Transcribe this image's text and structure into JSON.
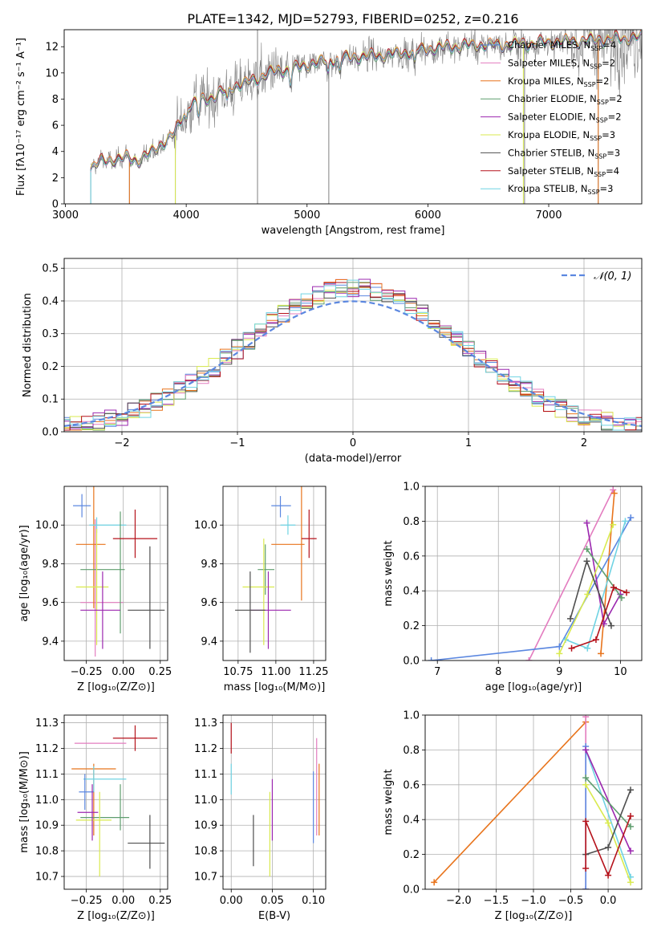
{
  "title": "PLATE=1342, MJD=52793, FIBERID=0252, z=0.216",
  "colors": {
    "orange": "#e8741c",
    "green": "#5f9e6e",
    "purple": "#9b27af",
    "yellow": "#d9ea4f",
    "dark": "#4f4f4f",
    "red": "#b5121b",
    "cyan": "#6fd3e3",
    "blue": "#5b87e0",
    "pink": "#e37cbf",
    "spectrum": "#808080"
  },
  "chart_data": [
    {
      "id": "spectrum",
      "type": "line",
      "xlabel": "wavelength [Angstrom, rest frame]",
      "ylabel": "Flux [fλ10⁻¹⁷ erg cm⁻² s⁻¹ A⁻¹]",
      "xlim": [
        2990,
        7770
      ],
      "ylim": [
        0,
        13.3
      ],
      "xticks": [
        3000,
        4000,
        5000,
        6000,
        7000
      ],
      "yticks": [
        0,
        2,
        4,
        6,
        8,
        10,
        12
      ],
      "grid": false,
      "legend_position": "top-right",
      "continuum_x": [
        3210,
        3300,
        3400,
        3500,
        3600,
        3700,
        3800,
        3900,
        3950,
        4000,
        4100,
        4200,
        4300,
        4400,
        4500,
        4600,
        4700,
        4800,
        4900,
        5000,
        5200,
        5400,
        5600,
        5800,
        6000,
        6200,
        6400,
        6600,
        6800,
        7000,
        7200,
        7400,
        7770
      ],
      "continuum_y": [
        2.8,
        3.2,
        3.4,
        3.5,
        3.3,
        3.8,
        4.6,
        5.3,
        6.2,
        7.4,
        7.8,
        8.1,
        8.5,
        9.0,
        9.2,
        9.6,
        10.0,
        10.2,
        10.3,
        10.6,
        11.0,
        11.2,
        11.3,
        11.5,
        11.8,
        12.0,
        12.1,
        12.1,
        12.2,
        12.3,
        12.4,
        12.5,
        12.7
      ],
      "series": [
        {
          "name": "Chabrier MILES, N_SSP=4",
          "color": "blue"
        },
        {
          "name": "Salpeter MILES, N_SSP=2",
          "color": "pink"
        },
        {
          "name": "Kroupa MILES, N_SSP=2",
          "color": "orange"
        },
        {
          "name": "Chabrier ELODIE, N_SSP=2",
          "color": "green"
        },
        {
          "name": "Salpeter ELODIE, N_SSP=2",
          "color": "purple"
        },
        {
          "name": "Kroupa ELODIE, N_SSP=3",
          "color": "yellow"
        },
        {
          "name": "Chabrier STELIB, N_SSP=3",
          "color": "dark"
        },
        {
          "name": "Salpeter STELIB, N_SSP=4",
          "color": "red"
        },
        {
          "name": "Kroupa STELIB, N_SSP=3",
          "color": "cyan"
        }
      ]
    },
    {
      "id": "residuals",
      "type": "line",
      "xlabel": "(data-model)/error",
      "ylabel": "Normed distribution",
      "xlim": [
        -2.5,
        2.5
      ],
      "ylim": [
        0,
        0.53
      ],
      "xticks": [
        -2,
        -1,
        0,
        1,
        2
      ],
      "xticklabels": [
        "−2",
        "−1",
        "0",
        "1",
        "2"
      ],
      "yticks": [
        0,
        0.1,
        0.2,
        0.3,
        0.4,
        0.5
      ],
      "yticklabels": [
        "0.0",
        "0.1",
        "0.2",
        "0.3",
        "0.4",
        "0.5"
      ],
      "grid": true,
      "gaussian_label": "𝒩(0, 1)",
      "bin_width": 0.1
    },
    {
      "id": "age_vs_Z",
      "type": "scatter",
      "xlabel": "Z [log₁₀(Z/Z⊙)]",
      "ylabel": "age  [log₁₀(age/yr)]",
      "xlim": [
        -0.4,
        0.3
      ],
      "ylim": [
        9.3,
        10.2
      ],
      "xticks": [
        -0.25,
        0.0,
        0.25
      ],
      "xticklabels": [
        "−0.25",
        "0.00",
        "0.25"
      ],
      "yticks": [
        9.4,
        9.6,
        9.8,
        10.0
      ],
      "yticklabels": [
        "9.4",
        "9.6",
        "9.8",
        "10.0"
      ],
      "grid": true,
      "points": [
        {
          "x": -0.28,
          "y": 10.1,
          "xe": [
            0.06,
            0.06
          ],
          "ye": [
            0.06,
            0.06
          ],
          "color": "blue"
        },
        {
          "x": -0.19,
          "y": 9.6,
          "xe": [
            0.1,
            0.19
          ],
          "ye": [
            0.28,
            0.43
          ],
          "color": "pink"
        },
        {
          "x": -0.2,
          "y": 9.9,
          "xe": [
            0.12,
            0.08
          ],
          "ye": [
            0.33,
            0.3
          ],
          "color": "orange"
        },
        {
          "x": -0.18,
          "y": 10.0,
          "xe": [
            0.05,
            0.2
          ],
          "ye": [
            0.04,
            0.04
          ],
          "color": "cyan"
        },
        {
          "x": -0.02,
          "y": 9.77,
          "xe": [
            0.27,
            0.03
          ],
          "ye": [
            0.33,
            0.3
          ],
          "color": "green"
        },
        {
          "x": -0.18,
          "y": 9.68,
          "xe": [
            0.14,
            0.08
          ],
          "ye": [
            0.3,
            0.3
          ],
          "color": "yellow"
        },
        {
          "x": -0.14,
          "y": 9.56,
          "xe": [
            0.15,
            0.12
          ],
          "ye": [
            0.2,
            0.2
          ],
          "color": "purple"
        },
        {
          "x": 0.08,
          "y": 9.93,
          "xe": [
            0.15,
            0.15
          ],
          "ye": [
            0.1,
            0.15
          ],
          "color": "red"
        },
        {
          "x": 0.18,
          "y": 9.56,
          "xe": [
            0.15,
            0.1
          ],
          "ye": [
            0.2,
            0.33
          ],
          "color": "dark"
        }
      ]
    },
    {
      "id": "age_vs_mass",
      "type": "scatter",
      "xlabel": "mass [log₁₀(M/M⊙)]",
      "xlim": [
        10.65,
        11.33
      ],
      "ylim": [
        9.3,
        10.2
      ],
      "xticks": [
        10.75,
        11.0,
        11.25
      ],
      "xticklabels": [
        "10.75",
        "11.00",
        "11.25"
      ],
      "yticks": [
        9.4,
        9.6,
        9.8,
        10.0
      ],
      "yticklabels": [
        "9.4",
        "9.6",
        "9.8",
        "10.0"
      ],
      "grid": true,
      "points": [
        {
          "x": 11.03,
          "y": 10.1,
          "xe": [
            0.06,
            0.07
          ],
          "ye": [
            0.06,
            0.05
          ],
          "color": "blue"
        },
        {
          "x": 11.08,
          "y": 10.0,
          "xe": [
            0.05,
            0.05
          ],
          "ye": [
            0.05,
            0.05
          ],
          "color": "cyan"
        },
        {
          "x": 11.17,
          "y": 9.9,
          "xe": [
            0.2,
            0.02
          ],
          "ye": [
            0.29,
            0.3
          ],
          "color": "orange"
        },
        {
          "x": 11.22,
          "y": 9.93,
          "xe": [
            0.05,
            0.05
          ],
          "ye": [
            0.1,
            0.15
          ],
          "color": "red"
        },
        {
          "x": 10.93,
          "y": 9.77,
          "xe": [
            0.05,
            0.06
          ],
          "ye": [
            0.13,
            0.13
          ],
          "color": "green"
        },
        {
          "x": 10.92,
          "y": 9.68,
          "xe": [
            0.14,
            0.07
          ],
          "ye": [
            0.3,
            0.25
          ],
          "color": "yellow"
        },
        {
          "x": 10.95,
          "y": 9.56,
          "xe": [
            0.12,
            0.15
          ],
          "ye": [
            0.2,
            0.2
          ],
          "color": "purple"
        },
        {
          "x": 10.83,
          "y": 9.56,
          "xe": [
            0.1,
            0.1
          ],
          "ye": [
            0.22,
            0.2
          ],
          "color": "dark"
        }
      ]
    },
    {
      "id": "weight_vs_age",
      "type": "line",
      "xlabel": "age  [log₁₀(age/yr)]",
      "ylabel": "mass weight",
      "xlim": [
        6.8,
        10.35
      ],
      "ylim": [
        0,
        1.0
      ],
      "xticks": [
        7,
        8,
        9,
        10
      ],
      "xticklabels": [
        "7",
        "8",
        "9",
        "10"
      ],
      "yticks": [
        0,
        0.2,
        0.4,
        0.6,
        0.8,
        1.0
      ],
      "yticklabels": [
        "0.0",
        "0.2",
        "0.4",
        "0.6",
        "0.8",
        "1.0"
      ],
      "grid": true,
      "series": [
        {
          "color": "pink",
          "x": [
            8.5,
            9.88
          ],
          "y": [
            0.0,
            0.98
          ]
        },
        {
          "color": "orange",
          "x": [
            9.68,
            9.9
          ],
          "y": [
            0.04,
            0.96
          ]
        },
        {
          "color": "blue",
          "x": [
            6.9,
            9.0,
            10.17
          ],
          "y": [
            0.0,
            0.08,
            0.82
          ]
        },
        {
          "color": "cyan",
          "x": [
            9.1,
            9.46,
            10.08
          ],
          "y": [
            0.12,
            0.07,
            0.8
          ]
        },
        {
          "color": "purple",
          "x": [
            9.45,
            9.73,
            10.0
          ],
          "y": [
            0.79,
            0.21,
            0.38
          ]
        },
        {
          "color": "green",
          "x": [
            9.45,
            10.02
          ],
          "y": [
            0.64,
            0.36
          ]
        },
        {
          "color": "yellow",
          "x": [
            9.0,
            9.46,
            9.88
          ],
          "y": [
            0.04,
            0.38,
            0.78
          ]
        },
        {
          "color": "dark",
          "x": [
            9.18,
            9.45,
            9.85
          ],
          "y": [
            0.24,
            0.57,
            0.2
          ]
        },
        {
          "color": "red",
          "x": [
            9.2,
            9.6,
            9.89,
            10.1
          ],
          "y": [
            0.07,
            0.12,
            0.42,
            0.39
          ]
        }
      ]
    },
    {
      "id": "mass_vs_Z",
      "type": "scatter",
      "xlabel": "Z [log₁₀(Z/Z⊙)]",
      "ylabel": "mass [log₁₀(M/M⊙)]",
      "xlim": [
        -0.4,
        0.3
      ],
      "ylim": [
        10.65,
        11.33
      ],
      "xticks": [
        -0.25,
        0.0,
        0.25
      ],
      "xticklabels": [
        "−0.25",
        "0.00",
        "0.25"
      ],
      "yticks": [
        10.7,
        10.8,
        10.9,
        11.0,
        11.1,
        11.2,
        11.3
      ],
      "yticklabels": [
        "10.7",
        "10.8",
        "10.9",
        "11.0",
        "11.1",
        "11.2",
        "11.3"
      ],
      "grid": true,
      "points": [
        {
          "x": 0.08,
          "y": 11.24,
          "xe": [
            0.15,
            0.15
          ],
          "ye": [
            0.05,
            0.05
          ],
          "color": "red"
        },
        {
          "x": -0.03,
          "y": 11.22,
          "xe": [
            0.3,
            0.05
          ],
          "ye": [
            0.0,
            0.0
          ],
          "color": "pink"
        },
        {
          "x": -0.2,
          "y": 11.12,
          "xe": [
            0.15,
            0.15
          ],
          "ye": [
            0.26,
            0.02
          ],
          "color": "orange"
        },
        {
          "x": -0.2,
          "y": 11.08,
          "xe": [
            0.07,
            0.22
          ],
          "ye": [
            0.05,
            0.05
          ],
          "color": "cyan"
        },
        {
          "x": -0.26,
          "y": 11.03,
          "xe": [
            0.04,
            0.06
          ],
          "ye": [
            0.07,
            0.07
          ],
          "color": "blue"
        },
        {
          "x": -0.02,
          "y": 10.93,
          "xe": [
            0.27,
            0.06
          ],
          "ye": [
            0.05,
            0.13
          ],
          "color": "green"
        },
        {
          "x": -0.16,
          "y": 10.92,
          "xe": [
            0.16,
            0.08
          ],
          "ye": [
            0.22,
            0.11
          ],
          "color": "yellow"
        },
        {
          "x": -0.21,
          "y": 10.95,
          "xe": [
            0.1,
            0.04
          ],
          "ye": [
            0.11,
            0.11
          ],
          "color": "purple"
        },
        {
          "x": 0.18,
          "y": 10.83,
          "xe": [
            0.15,
            0.1
          ],
          "ye": [
            0.1,
            0.11
          ],
          "color": "dark"
        }
      ]
    },
    {
      "id": "mass_vs_ebv",
      "type": "scatter",
      "xlabel": "E(B-V)",
      "xlim": [
        -0.01,
        0.115
      ],
      "ylim": [
        10.65,
        11.33
      ],
      "xticks": [
        0.0,
        0.05,
        0.1
      ],
      "xticklabels": [
        "0.00",
        "0.05",
        "0.10"
      ],
      "yticks": [
        10.7,
        10.8,
        10.9,
        11.0,
        11.1,
        11.2,
        11.3
      ],
      "yticklabels": [
        "10.7",
        "10.8",
        "10.9",
        "11.0",
        "11.1",
        "11.2",
        "11.3"
      ],
      "grid": true,
      "points": [
        {
          "x": 0.0,
          "y": 11.24,
          "xe": [
            0,
            0
          ],
          "ye": [
            0.06,
            0.06
          ],
          "color": "red"
        },
        {
          "x": 0.0,
          "y": 11.08,
          "xe": [
            0,
            0
          ],
          "ye": [
            0.06,
            0.06
          ],
          "color": "cyan"
        },
        {
          "x": 0.027,
          "y": 10.84,
          "xe": [
            0,
            0
          ],
          "ye": [
            0.1,
            0.1
          ],
          "color": "dark"
        },
        {
          "x": 0.047,
          "y": 10.87,
          "xe": [
            0,
            0
          ],
          "ye": [
            0.17,
            0.16
          ],
          "color": "yellow"
        },
        {
          "x": 0.05,
          "y": 10.96,
          "xe": [
            0,
            0
          ],
          "ye": [
            0.12,
            0.12
          ],
          "color": "purple"
        },
        {
          "x": 0.1,
          "y": 10.97,
          "xe": [
            0,
            0
          ],
          "ye": [
            0.14,
            0.14
          ],
          "color": "blue"
        },
        {
          "x": 0.104,
          "y": 11.05,
          "xe": [
            0,
            0
          ],
          "ye": [
            0.19,
            0.19
          ],
          "color": "pink"
        },
        {
          "x": 0.107,
          "y": 11.0,
          "xe": [
            0,
            0
          ],
          "ye": [
            0.14,
            0.14
          ],
          "color": "orange"
        }
      ]
    },
    {
      "id": "weight_vs_Z",
      "type": "line",
      "xlabel": "Z [log₁₀(Z/Z⊙)]",
      "ylabel": "mass weight",
      "xlim": [
        -2.45,
        0.45
      ],
      "ylim": [
        0,
        1.0
      ],
      "xticks": [
        -2.0,
        -1.5,
        -1.0,
        -0.5,
        0.0
      ],
      "xticklabels": [
        "−2.0",
        "−1.5",
        "−1.0",
        "−0.5",
        "0.0"
      ],
      "yticks": [
        0,
        0.2,
        0.4,
        0.6,
        0.8,
        1.0
      ],
      "yticklabels": [
        "0.0",
        "0.2",
        "0.4",
        "0.6",
        "0.8",
        "1.0"
      ],
      "grid": true,
      "series": [
        {
          "color": "orange",
          "x": [
            -2.33,
            -0.3
          ],
          "y": [
            0.04,
            0.96
          ]
        },
        {
          "color": "pink",
          "x": [
            -0.3,
            -0.3
          ],
          "y": [
            0.0,
            0.99
          ]
        },
        {
          "color": "blue",
          "x": [
            -0.3,
            -0.3
          ],
          "y": [
            0.0,
            0.82
          ]
        },
        {
          "color": "cyan",
          "x": [
            -0.3,
            0.3
          ],
          "y": [
            0.8,
            0.07
          ]
        },
        {
          "color": "purple",
          "x": [
            -0.3,
            0.3
          ],
          "y": [
            0.8,
            0.22
          ]
        },
        {
          "color": "green",
          "x": [
            -0.3,
            0.3
          ],
          "y": [
            0.64,
            0.36
          ]
        },
        {
          "color": "yellow",
          "x": [
            -0.3,
            0.0,
            0.3
          ],
          "y": [
            0.6,
            0.38,
            0.04
          ]
        },
        {
          "color": "dark",
          "x": [
            -0.3,
            0.0,
            0.3
          ],
          "y": [
            0.2,
            0.24,
            0.57
          ]
        },
        {
          "color": "red",
          "x": [
            -0.3,
            -0.3,
            0.0,
            0.3
          ],
          "y": [
            0.12,
            0.39,
            0.08,
            0.42
          ]
        }
      ]
    }
  ]
}
